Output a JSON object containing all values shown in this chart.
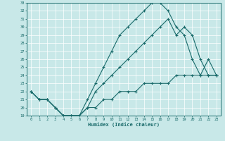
{
  "xlabel": "Humidex (Indice chaleur)",
  "background_color": "#c8e8e8",
  "line_color": "#1a6b6b",
  "ylim": [
    19,
    33
  ],
  "xlim": [
    -0.5,
    23.5
  ],
  "yticks": [
    19,
    20,
    21,
    22,
    23,
    24,
    25,
    26,
    27,
    28,
    29,
    30,
    31,
    32,
    33
  ],
  "xticks": [
    0,
    1,
    2,
    3,
    4,
    5,
    6,
    7,
    8,
    9,
    10,
    11,
    12,
    13,
    14,
    15,
    16,
    17,
    18,
    19,
    20,
    21,
    22,
    23
  ],
  "line1_x": [
    0,
    1,
    2,
    3,
    4,
    5,
    6,
    7,
    8,
    9,
    10,
    11,
    12,
    13,
    14,
    15,
    16,
    17,
    18,
    19,
    20,
    21,
    22,
    23
  ],
  "line1_y": [
    22,
    21,
    21,
    20,
    19,
    19,
    19,
    21,
    23,
    25,
    27,
    29,
    30,
    31,
    32,
    33,
    33,
    32,
    30,
    29,
    26,
    24,
    26,
    24
  ],
  "line2_x": [
    0,
    1,
    2,
    3,
    4,
    5,
    6,
    7,
    8,
    9,
    10,
    11,
    12,
    13,
    14,
    15,
    16,
    17,
    18,
    19,
    20,
    21,
    22,
    23
  ],
  "line2_y": [
    22,
    21,
    21,
    20,
    19,
    19,
    19,
    20,
    22,
    23,
    24,
    25,
    26,
    27,
    28,
    29,
    30,
    31,
    29,
    30,
    29,
    26,
    24,
    24
  ],
  "line3_x": [
    0,
    1,
    2,
    3,
    4,
    5,
    6,
    7,
    8,
    9,
    10,
    11,
    12,
    13,
    14,
    15,
    16,
    17,
    18,
    19,
    20,
    21,
    22,
    23
  ],
  "line3_y": [
    22,
    21,
    21,
    20,
    19,
    19,
    19,
    20,
    20,
    21,
    21,
    22,
    22,
    22,
    23,
    23,
    23,
    23,
    24,
    24,
    24,
    24,
    24,
    24
  ]
}
